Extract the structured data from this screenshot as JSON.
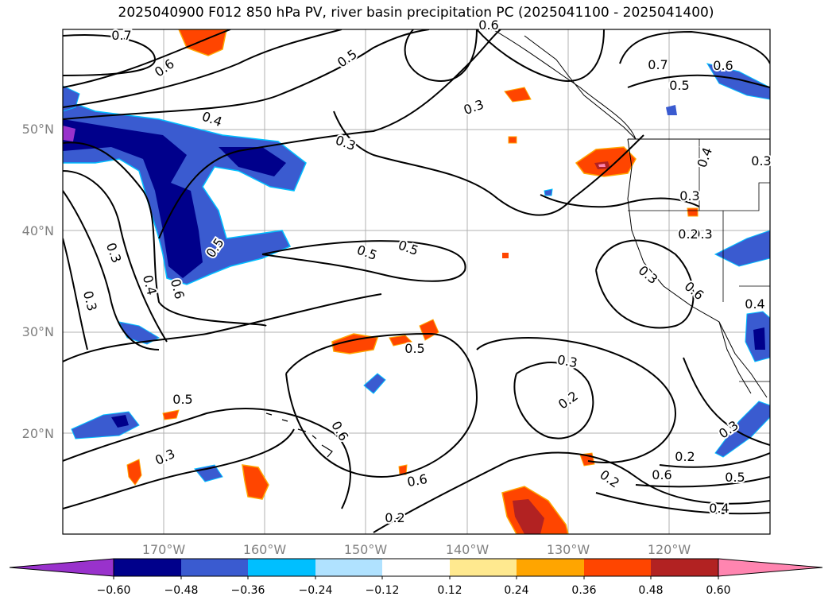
{
  "title": "2025040900 F012 850 hPa PV, river basin precipitation PC (2025041100 - 2025041400)",
  "map": {
    "lat_labels": [
      "50°N",
      "40°N",
      "30°N",
      "20°N"
    ],
    "lon_labels": [
      "170°W",
      "160°W",
      "150°W",
      "140°W",
      "130°W",
      "120°W"
    ],
    "contour_labels": [
      "0.7",
      "0.6",
      "0.5",
      "0.4",
      "0.3",
      "0.6",
      "0.3",
      "0.7",
      "0.5",
      "0.6",
      "0.4",
      "0.3",
      "0.3",
      "0.3",
      "0.3",
      "0.4",
      "0.5",
      "0.5",
      "0.3",
      "0.5",
      "0.6",
      "0.4",
      "0.5",
      "0.3",
      "0.2",
      "0.5",
      "0.6",
      "0.3",
      "0.3",
      "0.2",
      "0.6",
      "0.5",
      "0.6",
      "0.2",
      "0.2",
      "0.4",
      "0.2",
      "0.3",
      "0.6"
    ],
    "colors": {
      "neg_extreme": "#9932cc",
      "neg_060": "#00008b",
      "neg_048": "#3a5bd0",
      "neg_036": "#00bfff",
      "neg_024": "#b0e2ff",
      "neutral": "#ffffff",
      "pos_012": "#ffe98f",
      "pos_024": "#ffa500",
      "pos_036": "#ff4500",
      "pos_048": "#b22222",
      "pos_060": "#ff85b0",
      "grid": "#b0b0b0",
      "axis_label": "#808080"
    }
  },
  "colorbar": {
    "ticks": [
      "−0.60",
      "−0.48",
      "−0.36",
      "−0.24",
      "−0.12",
      "0.12",
      "0.24",
      "0.36",
      "0.48",
      "0.60"
    ]
  }
}
